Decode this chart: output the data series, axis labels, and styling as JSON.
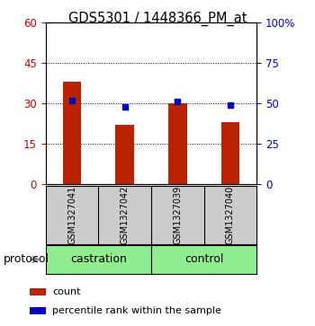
{
  "title": "GDS5301 / 1448366_PM_at",
  "samples": [
    "GSM1327041",
    "GSM1327042",
    "GSM1327039",
    "GSM1327040"
  ],
  "group_labels": [
    "castration",
    "control"
  ],
  "red_values": [
    38,
    22,
    30,
    23
  ],
  "blue_values": [
    52,
    48,
    51,
    49
  ],
  "left_ylim": [
    0,
    60
  ],
  "right_ylim": [
    0,
    100
  ],
  "left_yticks": [
    0,
    15,
    30,
    45,
    60
  ],
  "right_yticks": [
    0,
    25,
    50,
    75,
    100
  ],
  "right_yticklabels": [
    "0",
    "25",
    "50",
    "75",
    "100%"
  ],
  "bar_color": "#bb2200",
  "marker_color": "#0000bb",
  "bar_width": 0.35,
  "background_color": "#ffffff",
  "group_bg_color": "#cccccc",
  "protocol_bg": "#90ee90",
  "legend_items": [
    "count",
    "percentile rank within the sample"
  ],
  "title_fontsize": 10.5,
  "axis_color_left": "#cc0000",
  "axis_color_right": "#0000cc",
  "tick_fontsize": 8.5,
  "sample_fontsize": 7,
  "proto_fontsize": 9,
  "legend_fontsize": 8
}
